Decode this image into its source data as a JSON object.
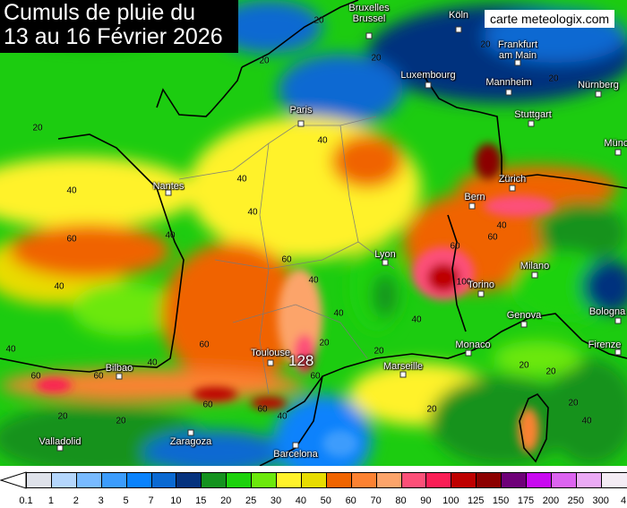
{
  "title": {
    "line1": "Cumuls de pluie du",
    "line2": "13 au 16 Février 2026"
  },
  "brand": "carte meteologix.com",
  "max_value_label": "128",
  "cities": [
    {
      "name": "Bruxelles",
      "name2": "Brussel"
    },
    {
      "name": "Köln"
    },
    {
      "name": "Frankfurt",
      "name2": "am Main"
    },
    {
      "name": "Luxembourg"
    },
    {
      "name": "Mannheim"
    },
    {
      "name": "Nürnberg"
    },
    {
      "name": "Paris"
    },
    {
      "name": "Stuttgart"
    },
    {
      "name": "Münche"
    },
    {
      "name": "Nantes"
    },
    {
      "name": "Bern"
    },
    {
      "name": "Zürich"
    },
    {
      "name": "Lyon"
    },
    {
      "name": "Milano"
    },
    {
      "name": "Torino"
    },
    {
      "name": "Genova"
    },
    {
      "name": "Bologna"
    },
    {
      "name": "Monaco"
    },
    {
      "name": "Firenze"
    },
    {
      "name": "Toulouse"
    },
    {
      "name": "Marseille"
    },
    {
      "name": "Bilbao"
    },
    {
      "name": "Valladolid"
    },
    {
      "name": "Zaragoza"
    },
    {
      "name": "Barcelona"
    }
  ],
  "contour_labels": [
    "20",
    "20",
    "20",
    "20",
    "20",
    "20",
    "40",
    "40",
    "40",
    "40",
    "40",
    "40",
    "60",
    "40",
    "60",
    "60",
    "40",
    "40",
    "60",
    "60",
    "60",
    "60",
    "40",
    "60",
    "40",
    "20",
    "40",
    "60",
    "100",
    "60",
    "20",
    "20",
    "40",
    "20",
    "20",
    "20",
    "20",
    "40",
    "20"
  ],
  "legend": {
    "unit_values": [
      "0.1",
      "1",
      "2",
      "3",
      "5",
      "7",
      "10",
      "15",
      "20",
      "25",
      "30",
      "40",
      "50",
      "60",
      "70",
      "80",
      "90",
      "100",
      "125",
      "150",
      "175",
      "200",
      "250",
      "300",
      "4"
    ],
    "colors": [
      "#dfe2ea",
      "#b4d6fc",
      "#78baff",
      "#3c9cfc",
      "#0a82fc",
      "#0a69d2",
      "#05327e",
      "#14921e",
      "#1cd20c",
      "#6ce80c",
      "#fff22a",
      "#e8dc00",
      "#f06400",
      "#fc8232",
      "#fca46a",
      "#fc5078",
      "#fa1e55",
      "#be0000",
      "#8c0000",
      "#6e0078",
      "#c80af0",
      "#dc64f0",
      "#ebaaf5",
      "#f4ecf4"
    ]
  }
}
